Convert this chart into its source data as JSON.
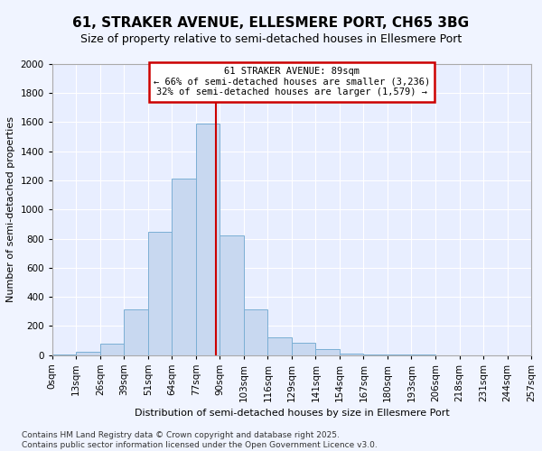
{
  "title": "61, STRAKER AVENUE, ELLESMERE PORT, CH65 3BG",
  "subtitle": "Size of property relative to semi-detached houses in Ellesmere Port",
  "xlabel": "Distribution of semi-detached houses by size in Ellesmere Port",
  "ylabel": "Number of semi-detached properties",
  "footnote1": "Contains HM Land Registry data © Crown copyright and database right 2025.",
  "footnote2": "Contains public sector information licensed under the Open Government Licence v3.0.",
  "property_size": 89,
  "annotation_title": "61 STRAKER AVENUE: 89sqm",
  "annotation_line1": "← 66% of semi-detached houses are smaller (3,236)",
  "annotation_line2": "32% of semi-detached houses are larger (1,579) →",
  "bin_edges": [
    0,
    13,
    26,
    39,
    52,
    65,
    78,
    91,
    104,
    117,
    130,
    143,
    156,
    169,
    182,
    195,
    208,
    221,
    234,
    247,
    260
  ],
  "bin_labels": [
    "0sqm",
    "13sqm",
    "26sqm",
    "39sqm",
    "51sqm",
    "64sqm",
    "77sqm",
    "90sqm",
    "103sqm",
    "116sqm",
    "129sqm",
    "141sqm",
    "154sqm",
    "167sqm",
    "180sqm",
    "193sqm",
    "206sqm",
    "218sqm",
    "231sqm",
    "244sqm",
    "257sqm"
  ],
  "counts": [
    3,
    20,
    80,
    315,
    845,
    1215,
    1590,
    820,
    315,
    120,
    85,
    40,
    8,
    4,
    2,
    1,
    0,
    0,
    0,
    0
  ],
  "bar_color": "#c8d8f0",
  "bar_edge_color": "#7bafd4",
  "vline_color": "#cc0000",
  "vline_x": 89,
  "box_color": "#cc0000",
  "ylim": [
    0,
    2000
  ],
  "yticks": [
    0,
    200,
    400,
    600,
    800,
    1000,
    1200,
    1400,
    1600,
    1800,
    2000
  ],
  "background_color": "#f0f4ff",
  "plot_background": "#e8eeff",
  "grid_color": "#ffffff",
  "title_fontsize": 11,
  "subtitle_fontsize": 9,
  "tick_fontsize": 7.5,
  "ylabel_fontsize": 8,
  "xlabel_fontsize": 8,
  "footnote_fontsize": 6.5
}
